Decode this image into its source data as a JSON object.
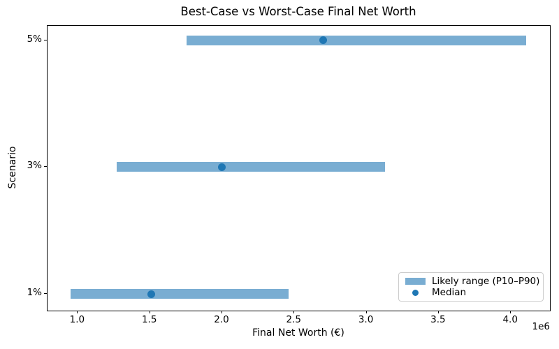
{
  "chart_data": {
    "type": "bar",
    "orientation": "horizontal",
    "title": "Best-Case vs Worst-Case Final Net Worth",
    "xlabel": "Final Net Worth (€)",
    "ylabel": "Scenario",
    "x_scale_note": "1e6",
    "categories": [
      "1%",
      "3%",
      "5%"
    ],
    "series": [
      {
        "name": "Likely range (P10–P90)",
        "role": "range",
        "p10": [
          950000,
          1270000,
          1755000
        ],
        "p90": [
          2460000,
          3130000,
          4105000
        ]
      },
      {
        "name": "Median",
        "role": "point",
        "values": [
          1510000,
          2000000,
          2700000
        ]
      }
    ],
    "xlim": [
      790000,
      4270000
    ],
    "xticks": [
      1000000,
      1500000,
      2000000,
      2500000,
      3000000,
      3500000,
      4000000
    ],
    "xtick_labels": [
      "1.0",
      "1.5",
      "2.0",
      "2.5",
      "3.0",
      "3.5",
      "4.0"
    ],
    "grid": false,
    "legend_position": "lower right",
    "colors": {
      "range_bar": "#79add2",
      "median": "#1f77b4",
      "spine": "#000000"
    }
  }
}
